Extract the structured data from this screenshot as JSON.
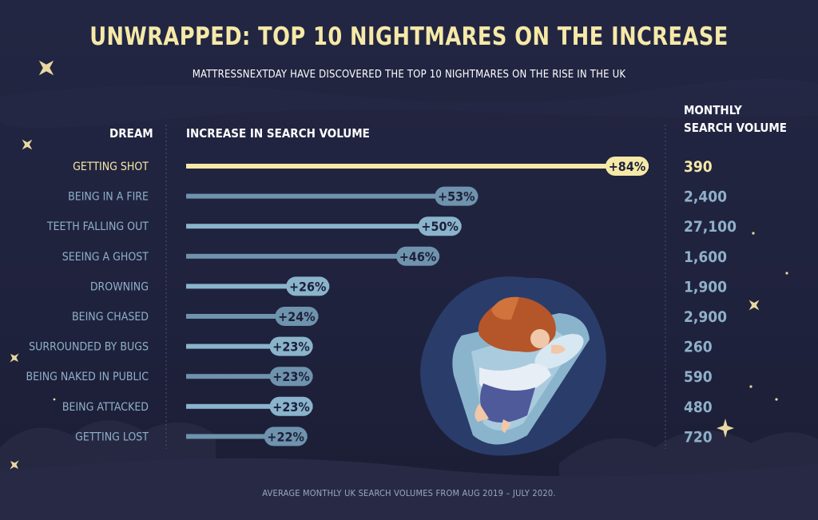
{
  "title": "UNWRAPPED: TOP 10 NIGHTMARES ON THE INCREASE",
  "subtitle": "MATTRESSNEXTDAY HAVE DISCOVERED THE TOP 10 NIGHTMARES ON THE RISE IN THE UK",
  "headers": {
    "dream": "DREAM",
    "increase": "INCREASE IN SEARCH VOLUME",
    "monthly_line1": "MONTHLY",
    "monthly_line2": "SEARCH VOLUME"
  },
  "footer": "AVERAGE MONTHLY UK SEARCH VOLUMES FROM AUG 2019 – JULY 2020.",
  "colors": {
    "highlight": "#f6e9a8",
    "bar_light": "#8ab4cc",
    "bar_dark": "#6f93ad",
    "label": "#8fb0c9",
    "background": "#1f223d"
  },
  "chart_data": {
    "type": "bar",
    "orientation": "horizontal",
    "title": "UNWRAPPED: TOP 10 NIGHTMARES ON THE INCREASE",
    "categories": [
      "GETTING SHOT",
      "BEING IN A FIRE",
      "TEETH FALLING OUT",
      "SEEING A GHOST",
      "DROWNING",
      "BEING CHASED",
      "SURROUNDED BY BUGS",
      "BEING NAKED IN PUBLIC",
      "BEING ATTACKED",
      "GETTING LOST"
    ],
    "values": [
      84,
      53,
      50,
      46,
      26,
      24,
      23,
      23,
      23,
      22
    ],
    "value_labels": [
      "+84%",
      "+53%",
      "+50%",
      "+46%",
      "+26%",
      "+24%",
      "+23%",
      "+23%",
      "+23%",
      "+22%"
    ],
    "monthly_search_volume": [
      "390",
      "2,400",
      "27,100",
      "1,600",
      "1,900",
      "2,900",
      "260",
      "590",
      "480",
      "720"
    ],
    "xlim": [
      0,
      84
    ],
    "highlight_index": 0
  }
}
